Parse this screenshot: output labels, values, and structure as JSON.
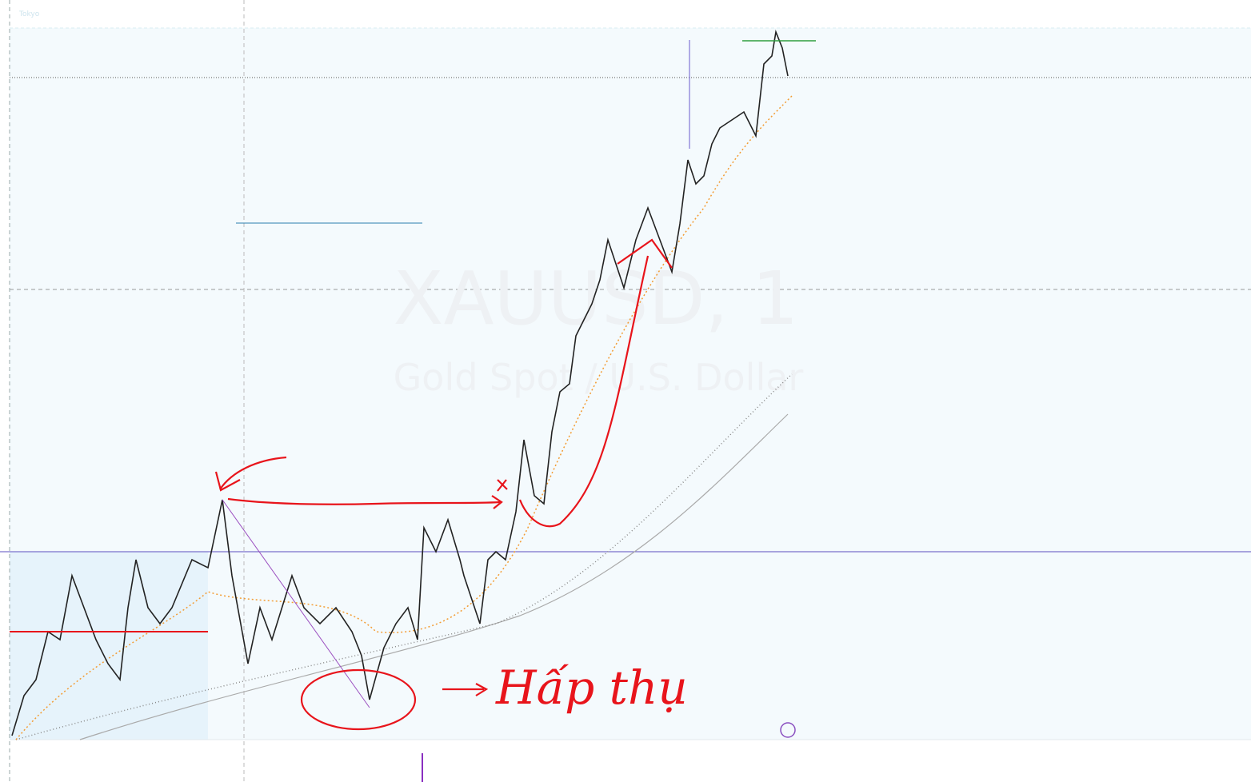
{
  "watermark": {
    "symbol": "XAUUSD, 1",
    "description": "Gold Spot / U.S. Dollar"
  },
  "session_label": "Tokyo",
  "annotation": "Hấp thụ"
}
